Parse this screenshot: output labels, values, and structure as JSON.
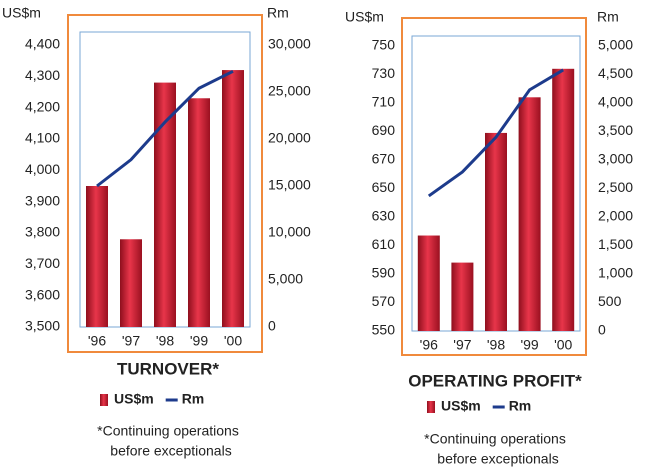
{
  "chart_data": [
    {
      "type": "bar",
      "title": "TURNOVER*",
      "y_label": "US$m",
      "y2_label": "Rm",
      "categories": [
        "'96",
        "'97",
        "'98",
        "'99",
        "'00"
      ],
      "series": [
        {
          "name": "US$m",
          "color": "#c8182c",
          "values": [
            3950,
            3780,
            4280,
            4230,
            4320
          ]
        },
        {
          "name": "Rm",
          "color": "#1d3b8c",
          "axis": "y2",
          "type": "line",
          "values": [
            15000,
            17800,
            21800,
            25400,
            27200
          ]
        }
      ],
      "ylim": [
        3500,
        4400
      ],
      "yticks": [
        {
          "value": 3500,
          "label": "3,500"
        },
        {
          "value": 3600,
          "label": "3,600"
        },
        {
          "value": 3700,
          "label": "3,700"
        },
        {
          "value": 3800,
          "label": "3,800"
        },
        {
          "value": 3900,
          "label": "3,900"
        },
        {
          "value": 4000,
          "label": "4,000"
        },
        {
          "value": 4100,
          "label": "4,100"
        },
        {
          "value": 4200,
          "label": "4,200"
        },
        {
          "value": 4300,
          "label": "4,300"
        },
        {
          "value": 4400,
          "label": "4,400"
        }
      ],
      "y2lim": [
        0,
        30000
      ],
      "y2ticks": [
        0,
        {
          "value": 5000,
          "label": "5,000"
        },
        {
          "value": 10000,
          "label": "10,000"
        },
        {
          "value": 15000,
          "label": "15,000"
        },
        {
          "value": 20000,
          "label": "20,000"
        },
        {
          "value": 25000,
          "label": "25,000"
        },
        {
          "value": 30000,
          "label": "30,000"
        }
      ],
      "note": [
        "*Continuing operations",
        "before exceptionals"
      ]
    },
    {
      "type": "bar",
      "title": "OPERATING PROFIT*",
      "y_label": "US$m",
      "y2_label": "Rm",
      "categories": [
        "'96",
        "'97",
        "'98",
        "'99",
        "'00"
      ],
      "series": [
        {
          "name": "US$m",
          "color": "#c8182c",
          "values": [
            617,
            598,
            689,
            714,
            734
          ]
        },
        {
          "name": "Rm",
          "color": "#1d3b8c",
          "axis": "y2",
          "type": "line",
          "values": [
            2370,
            2790,
            3400,
            4230,
            4580
          ]
        }
      ],
      "ylim": [
        550,
        750
      ],
      "yticks": [
        550,
        570,
        590,
        610,
        630,
        650,
        670,
        690,
        710,
        730,
        750
      ],
      "y2lim": [
        0,
        5000
      ],
      "y2ticks": [
        0,
        500,
        {
          "value": 1000,
          "label": "1,000"
        },
        {
          "value": 1500,
          "label": "1,500"
        },
        {
          "value": 2000,
          "label": "2,000"
        },
        {
          "value": 2500,
          "label": "2,500"
        },
        {
          "value": 3000,
          "label": "3,000"
        },
        {
          "value": 3500,
          "label": "3,500"
        },
        {
          "value": 4000,
          "label": "4,000"
        },
        {
          "value": 4500,
          "label": "4,500"
        },
        {
          "value": 5000,
          "label": "5,000"
        }
      ],
      "note": [
        "*Continuing operations",
        "before exceptionals"
      ]
    }
  ]
}
